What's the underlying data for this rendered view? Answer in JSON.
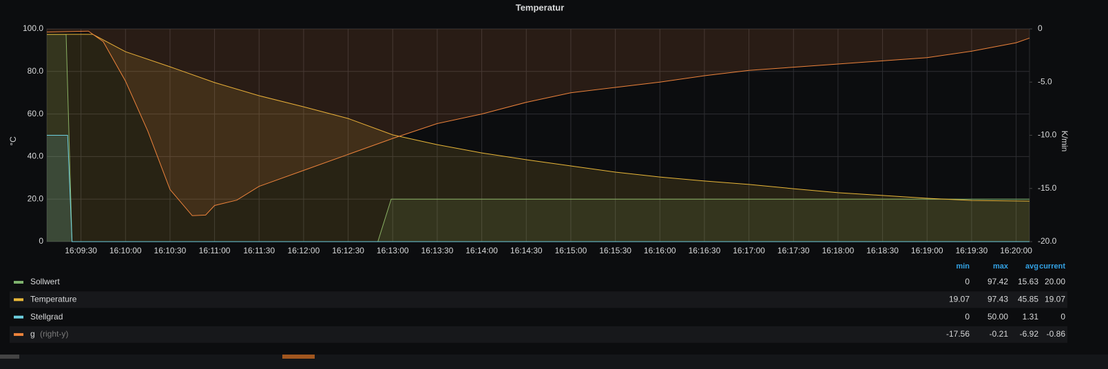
{
  "chart_data": {
    "type": "line",
    "title": "Temperatur",
    "y_label": "°C",
    "y2_label": "K/min",
    "xlim": [
      "16:09:07",
      "16:20:09"
    ],
    "xticks": [
      "16:09:30",
      "16:10:00",
      "16:10:30",
      "16:11:00",
      "16:11:30",
      "16:12:00",
      "16:12:30",
      "16:13:00",
      "16:13:30",
      "16:14:00",
      "16:14:30",
      "16:15:00",
      "16:15:30",
      "16:16:00",
      "16:16:30",
      "16:17:00",
      "16:17:30",
      "16:18:00",
      "16:18:30",
      "16:19:00",
      "16:19:30",
      "16:20:00"
    ],
    "ylim": [
      0,
      100
    ],
    "yticks": [
      0,
      {
        "value": 20,
        "label": "20.0"
      },
      {
        "value": 40,
        "label": "40.0"
      },
      {
        "value": 60,
        "label": "60.0"
      },
      {
        "value": 80,
        "label": "80.0"
      },
      {
        "value": 100,
        "label": "100.0"
      }
    ],
    "y2lim": [
      -20,
      0
    ],
    "y2ticks": [
      0,
      {
        "value": -5,
        "label": "-5.0"
      },
      {
        "value": -10,
        "label": "-10.0"
      },
      {
        "value": -15,
        "label": "-15.0"
      },
      {
        "value": -20,
        "label": "-20.0"
      }
    ],
    "grid": true,
    "fill": true,
    "legend_columns": [
      "min",
      "max",
      "avg",
      "current"
    ],
    "series": [
      {
        "name": "Sollwert",
        "color": "#7eb26d",
        "x": [
          "16:09:07",
          "16:09:20",
          "16:09:24",
          "16:12:50",
          "16:12:59",
          "16:20:09"
        ],
        "values": [
          97.42,
          97.42,
          0,
          0,
          20,
          20
        ],
        "stats": [
          "0",
          "97.42",
          "15.63",
          "20.00"
        ]
      },
      {
        "name": "Temperature",
        "color": "#eab839",
        "x": [
          "16:09:07",
          "16:09:38",
          "16:10:00",
          "16:10:30",
          "16:11:00",
          "16:11:30",
          "16:12:00",
          "16:12:30",
          "16:13:00",
          "16:13:30",
          "16:14:00",
          "16:14:30",
          "16:15:00",
          "16:15:30",
          "16:16:00",
          "16:16:30",
          "16:17:00",
          "16:17:30",
          "16:18:00",
          "16:18:30",
          "16:19:00",
          "16:19:30",
          "16:20:09"
        ],
        "values": [
          97.43,
          97.43,
          89.3,
          82.2,
          74.8,
          68.6,
          63.4,
          57.9,
          50.2,
          45.6,
          41.7,
          38.5,
          35.6,
          32.7,
          30.4,
          28.5,
          26.9,
          24.9,
          23.0,
          21.7,
          20.4,
          19.4,
          19.07
        ],
        "stats": [
          "19.07",
          "97.43",
          "45.85",
          "19.07"
        ]
      },
      {
        "name": "Stellgrad",
        "color": "#6ed0e0",
        "x": [
          "16:09:07",
          "16:09:21",
          "16:09:24",
          "16:20:09"
        ],
        "values": [
          50,
          50,
          0,
          0
        ],
        "stats": [
          "0",
          "50.00",
          "1.31",
          "0"
        ]
      },
      {
        "name": "g",
        "note": "(right-y)",
        "axis": "y2",
        "color": "#ef843c",
        "x": [
          "16:09:07",
          "16:09:35",
          "16:09:45",
          "16:10:00",
          "16:10:15",
          "16:10:30",
          "16:10:45",
          "16:10:54",
          "16:11:00",
          "16:11:15",
          "16:11:30",
          "16:12:00",
          "16:12:30",
          "16:13:00",
          "16:13:30",
          "16:14:00",
          "16:14:30",
          "16:15:00",
          "16:15:30",
          "16:16:00",
          "16:16:30",
          "16:17:00",
          "16:17:30",
          "16:18:00",
          "16:18:30",
          "16:19:00",
          "16:19:30",
          "16:20:00",
          "16:20:09"
        ],
        "values": [
          -0.3,
          -0.21,
          -1.2,
          -4.9,
          -9.6,
          -15.1,
          -17.56,
          -17.5,
          -16.6,
          -16.1,
          -14.8,
          -13.3,
          -11.8,
          -10.3,
          -8.9,
          -8.0,
          -6.9,
          -6.0,
          -5.5,
          -5.0,
          -4.4,
          -3.9,
          -3.6,
          -3.3,
          -3.0,
          -2.7,
          -2.1,
          -1.3,
          -0.86
        ],
        "stats": [
          "-17.56",
          "-0.21",
          "-6.92",
          "-0.86"
        ]
      }
    ]
  }
}
